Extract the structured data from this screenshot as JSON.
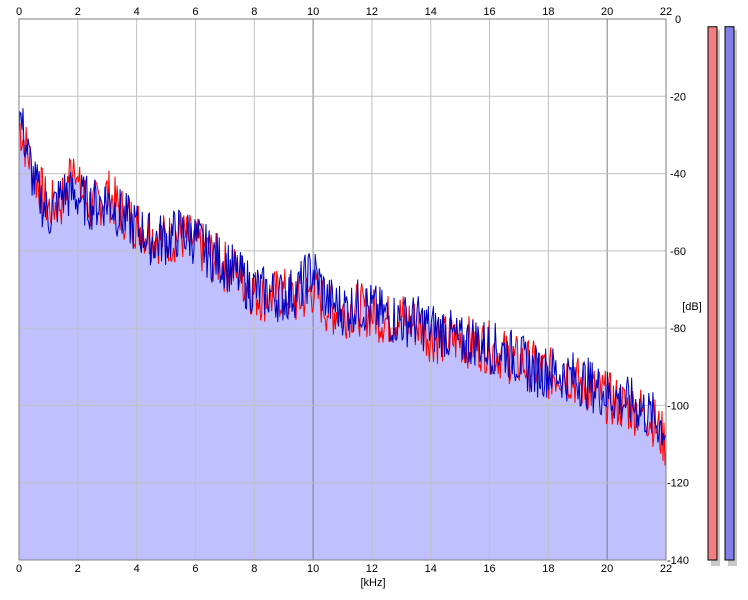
{
  "chart_data": {
    "type": "area",
    "xlabel": "[kHz]",
    "ylabel": "[dB]",
    "xlim": [
      0,
      22
    ],
    "ylim": [
      -140,
      0
    ],
    "x_ticks": [
      "0",
      "2",
      "4",
      "6",
      "8",
      "10",
      "12",
      "14",
      "16",
      "18",
      "20",
      "22"
    ],
    "y_ticks": [
      "0",
      "-20",
      "-40",
      "-60",
      "-80",
      "-100",
      "-120",
      "-140"
    ],
    "grid": true,
    "series": [
      {
        "color": "#ff0000",
        "x": [
          0,
          0.5,
          1,
          1.5,
          1.9,
          2,
          2.5,
          3,
          3.5,
          4,
          4.5,
          5,
          5.5,
          6,
          6.5,
          7,
          7.5,
          8,
          8.5,
          9,
          9.5,
          10,
          10.5,
          11,
          11.5,
          12,
          12.5,
          13,
          13.5,
          14,
          14.5,
          15,
          15.5,
          16,
          16.5,
          17,
          17.5,
          18,
          18.5,
          19,
          19.5,
          20,
          20.5,
          21,
          21.5,
          22
        ],
        "y": [
          -27,
          -40,
          -49,
          -47,
          -34,
          -44,
          -49,
          -45,
          -50,
          -53,
          -56,
          -57,
          -56,
          -58,
          -61,
          -64,
          -66,
          -71,
          -72,
          -71,
          -73,
          -70,
          -75,
          -76,
          -75,
          -76,
          -78,
          -77,
          -79,
          -82,
          -83,
          -83,
          -84,
          -85,
          -87,
          -89,
          -90,
          -92,
          -91,
          -94,
          -96,
          -98,
          -100,
          -101,
          -103,
          -110
        ]
      },
      {
        "color": "#0000c0",
        "x": [
          0,
          0.5,
          1,
          1.5,
          2,
          2.5,
          3,
          3.5,
          4,
          4.5,
          5,
          5.5,
          6,
          6.5,
          7,
          7.5,
          8,
          8.5,
          9,
          9.5,
          10,
          10.5,
          11,
          11.5,
          12,
          12.5,
          13,
          13.5,
          14,
          14.5,
          15,
          15.5,
          16,
          16.5,
          17,
          17.5,
          18,
          18.5,
          19,
          19.5,
          20,
          20.5,
          21,
          21.5,
          22
        ],
        "y": [
          -24,
          -42,
          -51,
          -45,
          -46,
          -48,
          -47,
          -51,
          -54,
          -57,
          -57,
          -55,
          -57,
          -61,
          -63,
          -67,
          -70,
          -71,
          -72,
          -70,
          -65,
          -73,
          -75,
          -74,
          -75,
          -77,
          -78,
          -78,
          -80,
          -81,
          -84,
          -83,
          -85,
          -86,
          -88,
          -91,
          -91,
          -92,
          -93,
          -95,
          -97,
          -99,
          -100,
          -103,
          -106
        ]
      }
    ],
    "fill_color": "#c0c0ff",
    "levels": [
      {
        "color": "#f08080",
        "value": -2
      },
      {
        "color": "#8080e8",
        "value": -2
      }
    ]
  }
}
